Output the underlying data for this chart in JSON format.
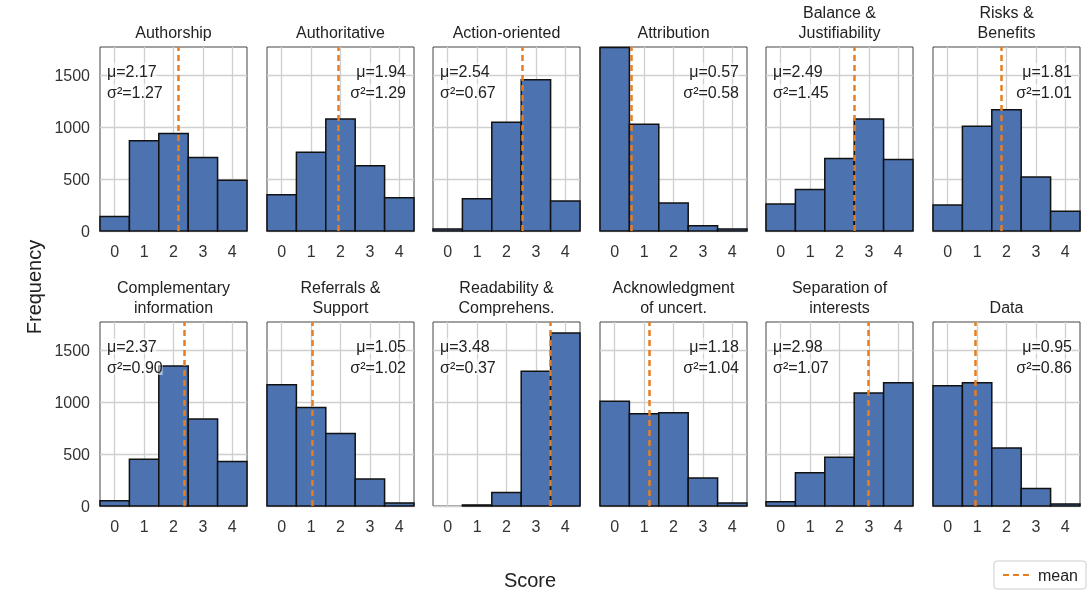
{
  "chart_data": [
    {
      "type": "histogram",
      "title": "Authorship",
      "bins": [
        -0.5,
        0.5,
        1.5,
        2.5,
        3.5,
        4.5
      ],
      "values": [
        140,
        870,
        940,
        710,
        490
      ],
      "color": "#4c72b0",
      "xlim": [
        -0.5,
        4.5
      ],
      "xticks": [
        0,
        1,
        2,
        3,
        4
      ],
      "ylim": [
        0,
        1775
      ],
      "yticks": [
        0,
        500,
        1000,
        1500
      ],
      "grid": true,
      "annotations": [
        "μ=2.17",
        "σ²=1.27"
      ],
      "ref_lines": [
        {
          "axis": "x",
          "value": 2.17,
          "color": "#e67e22",
          "line_style": "dashed"
        }
      ]
    },
    {
      "type": "histogram",
      "title": "Authoritative",
      "bins": [
        -0.5,
        0.5,
        1.5,
        2.5,
        3.5,
        4.5
      ],
      "values": [
        350,
        760,
        1080,
        630,
        320
      ],
      "color": "#4c72b0",
      "xlim": [
        -0.5,
        4.5
      ],
      "xticks": [
        0,
        1,
        2,
        3,
        4
      ],
      "ylim": [
        0,
        1775
      ],
      "yticks": [
        0,
        500,
        1000,
        1500
      ],
      "grid": true,
      "tick_labels": "x",
      "annotations": [
        "μ=1.94",
        "σ²=1.29"
      ],
      "ref_lines": [
        {
          "axis": "x",
          "value": 1.94,
          "color": "#e67e22",
          "line_style": "dashed"
        }
      ]
    },
    {
      "type": "histogram",
      "title": "Action-oriented",
      "bins": [
        -0.5,
        0.5,
        1.5,
        2.5,
        3.5,
        4.5
      ],
      "values": [
        20,
        310,
        1050,
        1460,
        290
      ],
      "color": "#4c72b0",
      "xlim": [
        -0.5,
        4.5
      ],
      "xticks": [
        0,
        1,
        2,
        3,
        4
      ],
      "ylim": [
        0,
        1775
      ],
      "yticks": [
        0,
        500,
        1000,
        1500
      ],
      "grid": true,
      "tick_labels": "x",
      "annotations": [
        "μ=2.54",
        "σ²=0.67"
      ],
      "ref_lines": [
        {
          "axis": "x",
          "value": 2.54,
          "color": "#e67e22",
          "line_style": "dashed"
        }
      ]
    },
    {
      "type": "histogram",
      "title": "Attribution",
      "bins": [
        -0.5,
        0.5,
        1.5,
        2.5,
        3.5,
        4.5
      ],
      "values": [
        1770,
        1030,
        270,
        50,
        20
      ],
      "color": "#4c72b0",
      "xlim": [
        -0.5,
        4.5
      ],
      "xticks": [
        0,
        1,
        2,
        3,
        4
      ],
      "ylim": [
        0,
        1775
      ],
      "yticks": [
        0,
        500,
        1000,
        1500
      ],
      "grid": true,
      "tick_labels": "x",
      "annotations": [
        "μ=0.57",
        "σ²=0.58"
      ],
      "ref_lines": [
        {
          "axis": "x",
          "value": 0.57,
          "color": "#e67e22",
          "line_style": "dashed"
        }
      ]
    },
    {
      "type": "histogram",
      "title": "Balance &\nJustifiability",
      "bins": [
        -0.5,
        0.5,
        1.5,
        2.5,
        3.5,
        4.5
      ],
      "values": [
        260,
        400,
        700,
        1080,
        690
      ],
      "color": "#4c72b0",
      "xlim": [
        -0.5,
        4.5
      ],
      "xticks": [
        0,
        1,
        2,
        3,
        4
      ],
      "ylim": [
        0,
        1775
      ],
      "yticks": [
        0,
        500,
        1000,
        1500
      ],
      "grid": true,
      "tick_labels": "x",
      "annotations": [
        "μ=2.49",
        "σ²=1.45"
      ],
      "ref_lines": [
        {
          "axis": "x",
          "value": 2.49,
          "color": "#e67e22",
          "line_style": "dashed"
        }
      ]
    },
    {
      "type": "histogram",
      "title": "Risks &\nBenefits",
      "bins": [
        -0.5,
        0.5,
        1.5,
        2.5,
        3.5,
        4.5
      ],
      "values": [
        250,
        1010,
        1170,
        520,
        190
      ],
      "color": "#4c72b0",
      "xlim": [
        -0.5,
        4.5
      ],
      "xticks": [
        0,
        1,
        2,
        3,
        4
      ],
      "ylim": [
        0,
        1775
      ],
      "yticks": [
        0,
        500,
        1000,
        1500
      ],
      "grid": true,
      "tick_labels": "x",
      "annotations": [
        "μ=1.81",
        "σ²=1.01"
      ],
      "ref_lines": [
        {
          "axis": "x",
          "value": 1.81,
          "color": "#e67e22",
          "line_style": "dashed"
        }
      ]
    },
    {
      "type": "histogram",
      "title": "Complementary\ninformation",
      "ylabel": "Frequency",
      "bins": [
        -0.5,
        0.5,
        1.5,
        2.5,
        3.5,
        4.5
      ],
      "values": [
        50,
        450,
        1350,
        840,
        430
      ],
      "color": "#4c72b0",
      "xlim": [
        -0.5,
        4.5
      ],
      "xticks": [
        0,
        1,
        2,
        3,
        4
      ],
      "ylim": [
        0,
        1775
      ],
      "yticks": [
        0,
        500,
        1000,
        1500
      ],
      "grid": true,
      "annotations": [
        "μ=2.37",
        "σ²=0.90"
      ],
      "ref_lines": [
        {
          "axis": "x",
          "value": 2.37,
          "color": "#e67e22",
          "line_style": "dashed"
        }
      ]
    },
    {
      "type": "histogram",
      "title": "Referrals &\nSupport",
      "bins": [
        -0.5,
        0.5,
        1.5,
        2.5,
        3.5,
        4.5
      ],
      "values": [
        1170,
        950,
        700,
        260,
        30
      ],
      "color": "#4c72b0",
      "xlim": [
        -0.5,
        4.5
      ],
      "xticks": [
        0,
        1,
        2,
        3,
        4
      ],
      "ylim": [
        0,
        1775
      ],
      "yticks": [
        0,
        500,
        1000,
        1500
      ],
      "grid": true,
      "tick_labels": "x",
      "annotations": [
        "μ=1.05",
        "σ²=1.02"
      ],
      "ref_lines": [
        {
          "axis": "x",
          "value": 1.05,
          "color": "#e67e22",
          "line_style": "dashed"
        }
      ]
    },
    {
      "type": "histogram",
      "title": "Readability &\nComprehens.",
      "xlabel": "Score",
      "bins": [
        -0.5,
        0.5,
        1.5,
        2.5,
        3.5,
        4.5
      ],
      "values": [
        0,
        10,
        130,
        1300,
        1670
      ],
      "color": "#4c72b0",
      "xlim": [
        -0.5,
        4.5
      ],
      "xticks": [
        0,
        1,
        2,
        3,
        4
      ],
      "ylim": [
        0,
        1775
      ],
      "yticks": [
        0,
        500,
        1000,
        1500
      ],
      "grid": true,
      "tick_labels": "x",
      "annotations": [
        "μ=3.48",
        "σ²=0.37"
      ],
      "ref_lines": [
        {
          "axis": "x",
          "value": 3.48,
          "color": "#e67e22",
          "line_style": "dashed"
        }
      ]
    },
    {
      "type": "histogram",
      "title": "Acknowledgment\nof uncert.",
      "bins": [
        -0.5,
        0.5,
        1.5,
        2.5,
        3.5,
        4.5
      ],
      "values": [
        1010,
        890,
        900,
        270,
        30
      ],
      "color": "#4c72b0",
      "xlim": [
        -0.5,
        4.5
      ],
      "xticks": [
        0,
        1,
        2,
        3,
        4
      ],
      "ylim": [
        0,
        1775
      ],
      "yticks": [
        0,
        500,
        1000,
        1500
      ],
      "grid": true,
      "tick_labels": "x",
      "annotations": [
        "μ=1.18",
        "σ²=1.04"
      ],
      "ref_lines": [
        {
          "axis": "x",
          "value": 1.18,
          "color": "#e67e22",
          "line_style": "dashed"
        }
      ]
    },
    {
      "type": "histogram",
      "title": "Separation of\ninterests",
      "bins": [
        -0.5,
        0.5,
        1.5,
        2.5,
        3.5,
        4.5
      ],
      "values": [
        40,
        320,
        470,
        1090,
        1190
      ],
      "color": "#4c72b0",
      "xlim": [
        -0.5,
        4.5
      ],
      "xticks": [
        0,
        1,
        2,
        3,
        4
      ],
      "ylim": [
        0,
        1775
      ],
      "yticks": [
        0,
        500,
        1000,
        1500
      ],
      "grid": true,
      "tick_labels": "x",
      "annotations": [
        "μ=2.98",
        "σ²=1.07"
      ],
      "ref_lines": [
        {
          "axis": "x",
          "value": 2.98,
          "color": "#e67e22",
          "line_style": "dashed"
        }
      ]
    },
    {
      "type": "histogram",
      "title": "Data",
      "bins": [
        -0.5,
        0.5,
        1.5,
        2.5,
        3.5,
        4.5
      ],
      "values": [
        1160,
        1190,
        560,
        170,
        20
      ],
      "color": "#4c72b0",
      "xlim": [
        -0.5,
        4.5
      ],
      "xticks": [
        0,
        1,
        2,
        3,
        4
      ],
      "ylim": [
        0,
        1775
      ],
      "yticks": [
        0,
        500,
        1000,
        1500
      ],
      "grid": true,
      "tick_labels": "x",
      "legend": "bottom right",
      "annotations": [
        "μ=0.95",
        "σ²=0.86"
      ],
      "ref_lines": [
        {
          "axis": "x",
          "value": 0.95,
          "color": "#e67e22",
          "line_style": "dashed",
          "label": "mean"
        }
      ]
    }
  ]
}
